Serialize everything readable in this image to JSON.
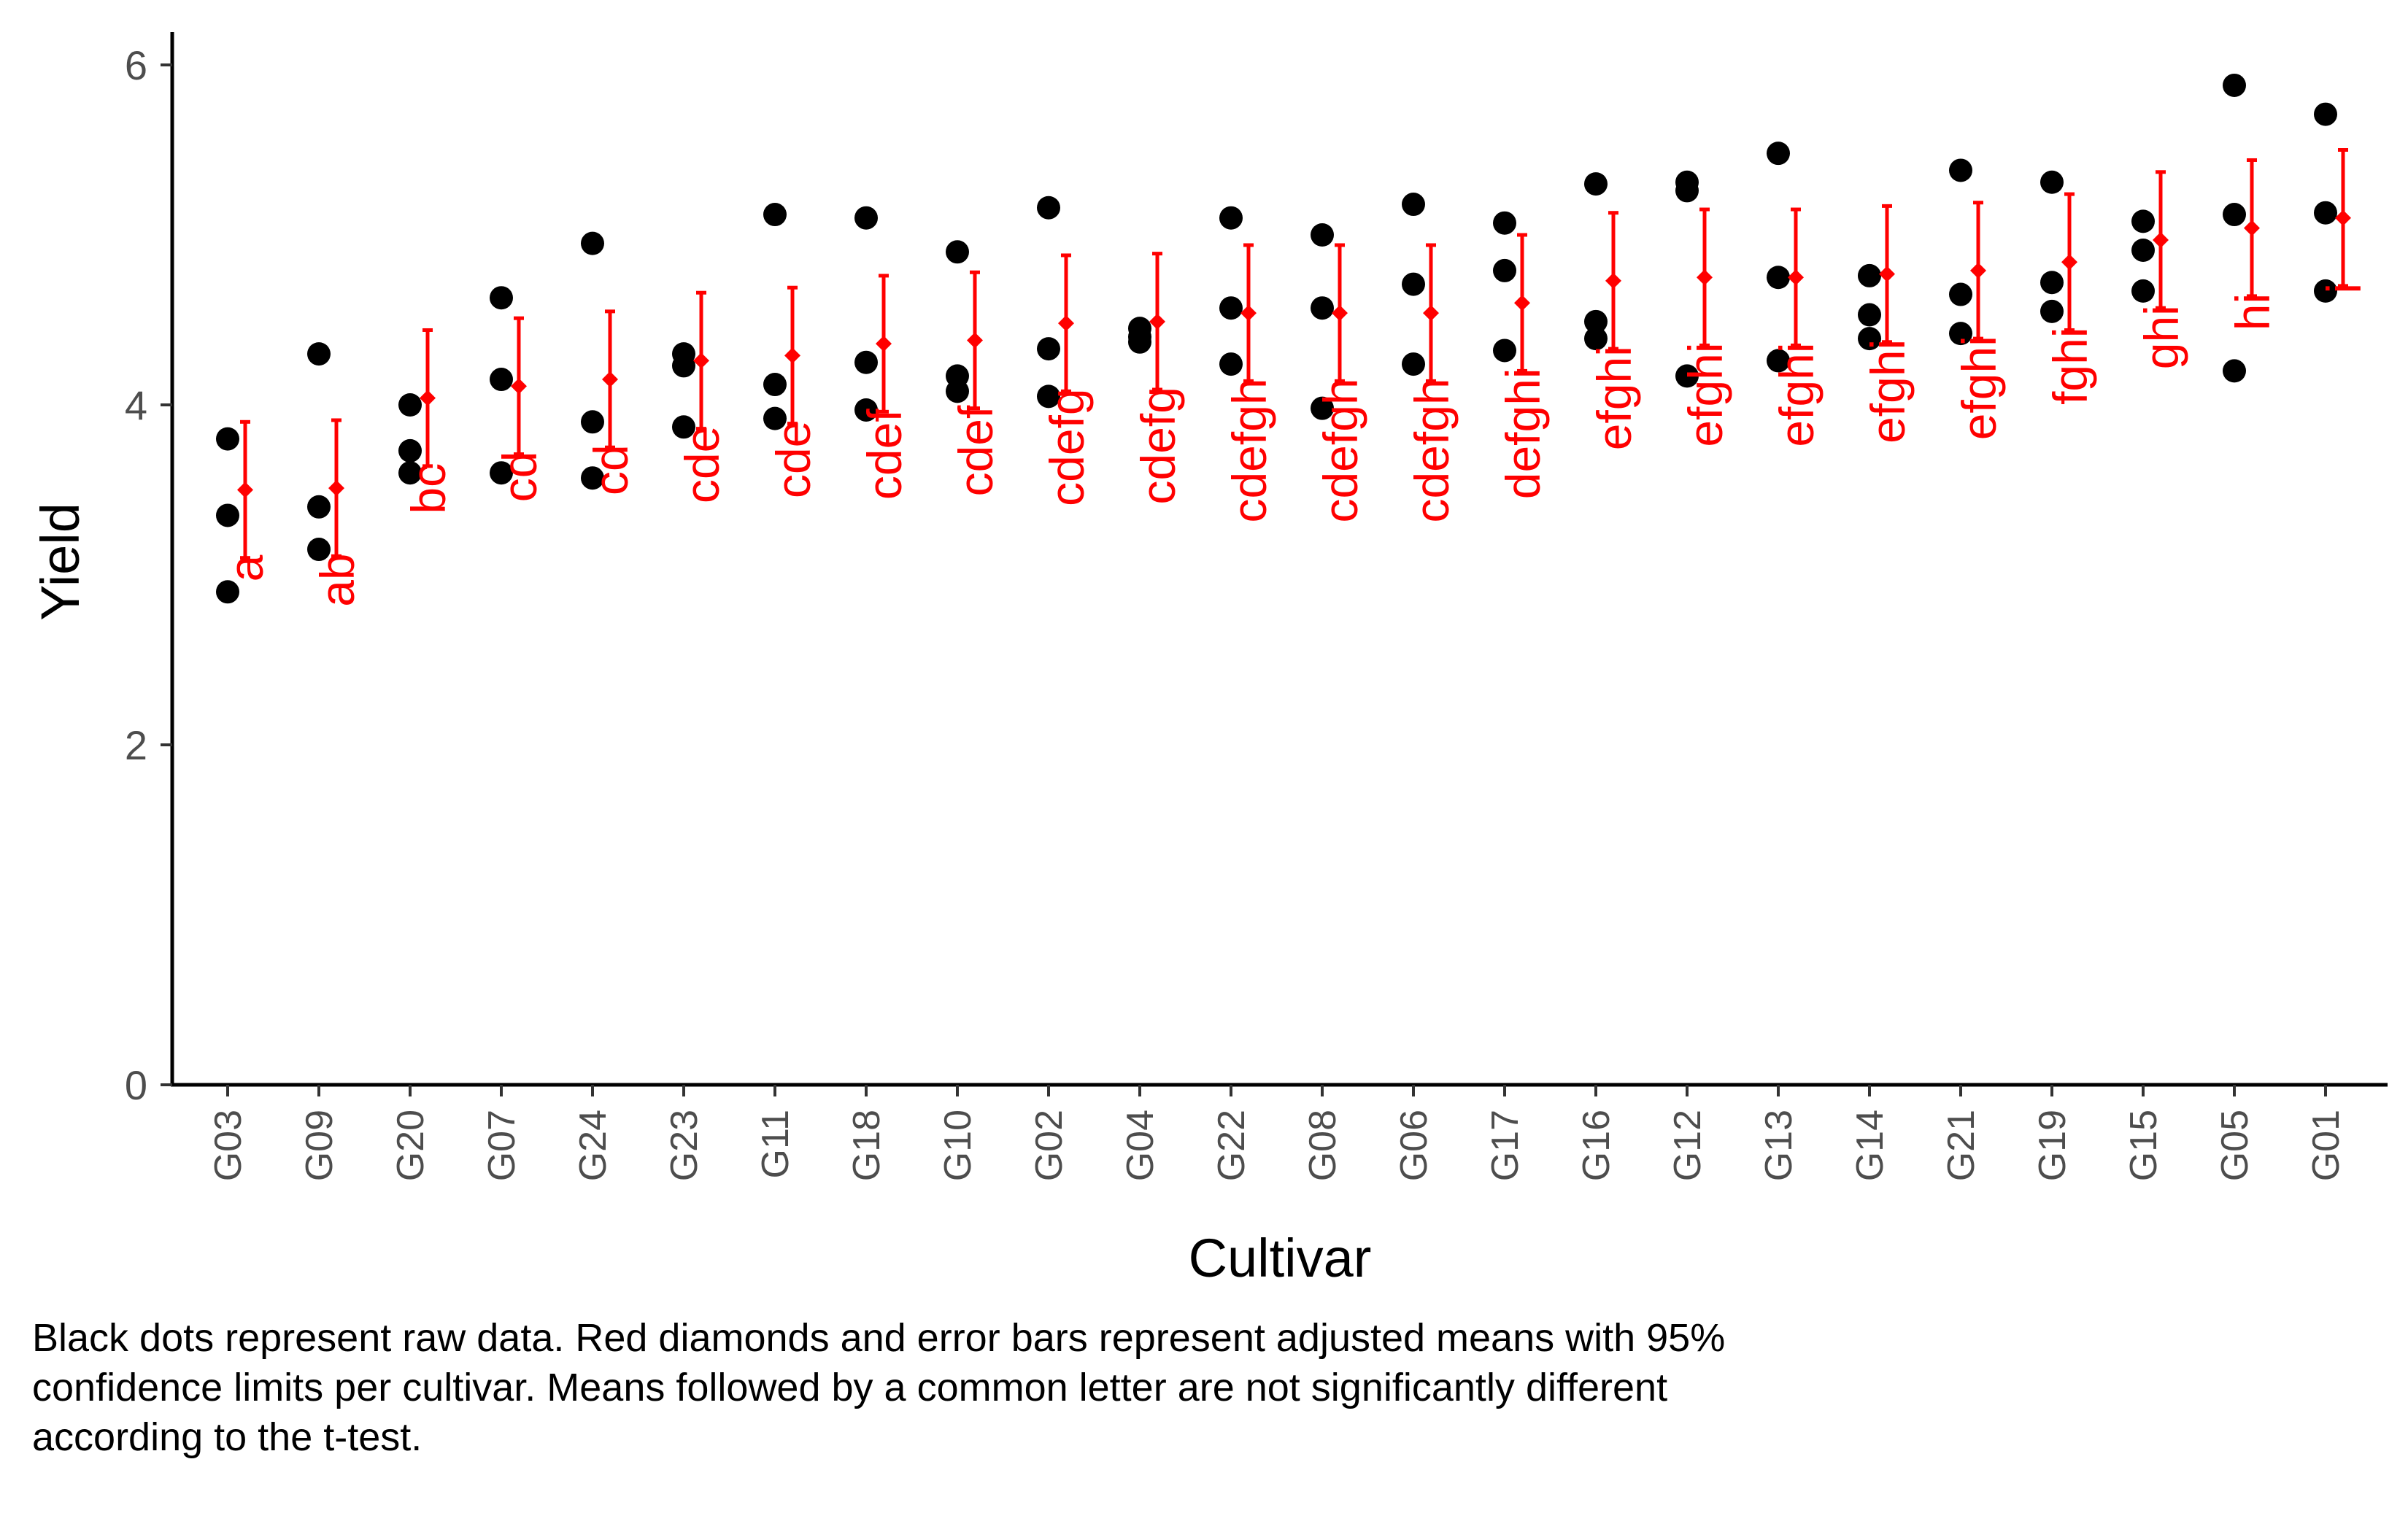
{
  "chart_data": {
    "type": "scatter",
    "xlabel": "Cultivar",
    "ylabel": "Yield",
    "ylim": [
      0,
      6.2
    ],
    "yticks": [
      0,
      2,
      4,
      6
    ],
    "grid": false,
    "categories": [
      "G03",
      "G09",
      "G20",
      "G07",
      "G24",
      "G23",
      "G11",
      "G18",
      "G10",
      "G02",
      "G04",
      "G22",
      "G08",
      "G06",
      "G17",
      "G16",
      "G12",
      "G13",
      "G14",
      "G21",
      "G19",
      "G15",
      "G05",
      "G01"
    ],
    "raw_points": [
      [
        3.8,
        3.35,
        2.9
      ],
      [
        4.3,
        3.4,
        3.15
      ],
      [
        4.0,
        3.73,
        3.6
      ],
      [
        4.63,
        4.15,
        3.6
      ],
      [
        4.95,
        3.9,
        3.57
      ],
      [
        4.3,
        4.23,
        3.87
      ],
      [
        5.12,
        4.12,
        3.92
      ],
      [
        5.1,
        4.25,
        3.97
      ],
      [
        4.9,
        4.17,
        4.08
      ],
      [
        5.16,
        4.33,
        4.05
      ],
      [
        4.45,
        4.4,
        4.37
      ],
      [
        5.1,
        4.57,
        4.24
      ],
      [
        5.0,
        4.57,
        3.98
      ],
      [
        5.18,
        4.71,
        4.24
      ],
      [
        5.07,
        4.79,
        4.32
      ],
      [
        5.3,
        4.49,
        4.39
      ],
      [
        5.31,
        5.26,
        4.17
      ],
      [
        5.48,
        4.75,
        4.26
      ],
      [
        4.76,
        4.53,
        4.39
      ],
      [
        5.38,
        4.65,
        4.42
      ],
      [
        5.31,
        4.72,
        4.55
      ],
      [
        5.08,
        4.91,
        4.67
      ],
      [
        5.88,
        5.12,
        4.2
      ],
      [
        5.71,
        5.13,
        4.67
      ]
    ],
    "means": [
      3.5,
      3.51,
      4.04,
      4.11,
      4.15,
      4.26,
      4.29,
      4.36,
      4.38,
      4.48,
      4.49,
      4.54,
      4.54,
      4.54,
      4.6,
      4.73,
      4.75,
      4.75,
      4.77,
      4.79,
      4.84,
      4.97,
      5.04,
      5.1
    ],
    "ci_lower": [
      3.1,
      3.11,
      3.64,
      3.71,
      3.75,
      3.86,
      3.89,
      3.96,
      3.98,
      4.08,
      4.09,
      4.14,
      4.14,
      4.14,
      4.2,
      4.33,
      4.35,
      4.35,
      4.37,
      4.39,
      4.44,
      4.57,
      4.64,
      4.7
    ],
    "ci_upper": [
      3.9,
      3.91,
      4.44,
      4.51,
      4.55,
      4.66,
      4.69,
      4.76,
      4.78,
      4.88,
      4.89,
      4.94,
      4.94,
      4.94,
      5.0,
      5.13,
      5.15,
      5.15,
      5.17,
      5.19,
      5.24,
      5.37,
      5.44,
      5.5
    ],
    "letters": [
      "a",
      "ab",
      "bc",
      "cd",
      "cd",
      "cde",
      "cde",
      "cdef",
      "cdef",
      "cdefg",
      "cdefg",
      "cdefgh",
      "cdefgh",
      "cdefgh",
      "defghi",
      "efghi",
      "efghi",
      "efghi",
      "efghi",
      "efghi",
      "fghi",
      "ghi",
      "hi",
      "i"
    ],
    "raw_color": "#000000",
    "mean_color": "#ff0000"
  },
  "caption": {
    "line1": "Black dots represent raw data. Red diamonds and error bars represent adjusted means with 95%",
    "line2": "confidence limits per cultivar. Means followed by a common letter are not significantly different",
    "line3": "according to the t-test."
  }
}
